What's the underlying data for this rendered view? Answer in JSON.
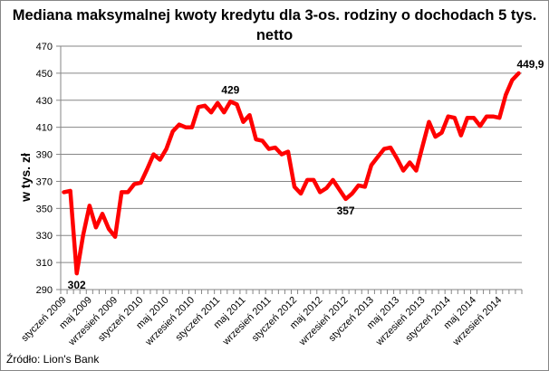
{
  "chart_data": {
    "type": "line",
    "title": "Mediana maksymalnej kwoty kredytu dla 3-os. rodziny o dochodach 5 tys. netto",
    "xlabel": "",
    "ylabel": "w tys. zł",
    "ylim": [
      290,
      470
    ],
    "yticks": [
      290,
      310,
      330,
      350,
      370,
      390,
      410,
      430,
      450,
      470
    ],
    "grid": true,
    "legend": null,
    "x_tick_labels": [
      "styczeń 2009",
      "maj 2009",
      "wrzesień 2009",
      "styczeń 2010",
      "maj 2010",
      "wrzesień 2010",
      "styczeń 2011",
      "maj 2011",
      "wrzesień 2011",
      "styczeń 2012",
      "maj 2012",
      "wrzesień 2012",
      "styczeń 2013",
      "maj 2013",
      "wrzesień 2013",
      "styczeń 2014",
      "maj 2014",
      "wrzesień 2014"
    ],
    "x_tick_every": 4,
    "x_start": "styczeń 2009",
    "x_end": "grudzień 2014",
    "series": [
      {
        "name": "Mediana maksymalnej kwoty kredytu",
        "color": "#ff0000",
        "values": [
          362,
          363,
          302,
          330,
          352,
          336,
          346,
          335,
          329,
          362,
          362,
          368,
          369,
          379,
          390,
          386,
          394,
          407,
          412,
          410,
          410,
          425,
          426,
          421,
          428,
          421,
          429,
          427,
          414,
          419,
          401,
          400,
          394,
          395,
          390,
          392,
          366,
          361,
          371,
          371,
          362,
          365,
          371,
          364,
          357,
          361,
          367,
          366,
          382,
          388,
          394,
          395,
          387,
          378,
          384,
          378,
          396,
          414,
          403,
          406,
          418,
          417,
          404,
          417,
          417,
          411,
          418,
          418,
          417,
          434,
          445,
          449.9
        ]
      }
    ],
    "annotations": [
      {
        "index": 2,
        "text": "302"
      },
      {
        "index": 26,
        "text": "429"
      },
      {
        "index": 44,
        "text": "357"
      },
      {
        "index": 71,
        "text": "449,9"
      }
    ]
  },
  "title": "Mediana maksymalnej kwoty kredytu dla 3-os. rodziny o dochodach 5 tys. netto",
  "title_line1": "Mediana maksymalnej kwoty kredytu dla 3-os. rodziny o dochodach 5 tys.",
  "title_line2": "netto",
  "ylabel": "w tys. zł",
  "source": "Źródło: Lion's Bank"
}
